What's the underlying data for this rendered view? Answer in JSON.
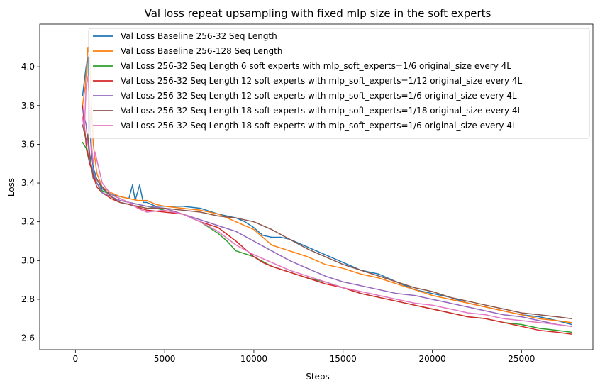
{
  "chart_data": {
    "type": "line",
    "title": "Val loss repeat upsampling with fixed mlp size in the soft experts",
    "xlabel": "Steps",
    "ylabel": "Loss",
    "xlim": [
      -2000,
      29000
    ],
    "ylim": [
      2.54,
      4.22
    ],
    "xticks": [
      0,
      5000,
      10000,
      15000,
      20000,
      25000
    ],
    "yticks": [
      2.6,
      2.8,
      3.0,
      3.2,
      3.4,
      3.6,
      3.8,
      4.0
    ],
    "grid": false,
    "legend_position": "top-right",
    "series": [
      {
        "name": "Val Loss Baseline 256-32 Seq Length",
        "color": "#1f77b4",
        "points": [
          [
            400,
            3.85
          ],
          [
            600,
            4.0
          ],
          [
            700,
            4.05
          ],
          [
            800,
            3.7
          ],
          [
            900,
            3.55
          ],
          [
            1000,
            3.48
          ],
          [
            1200,
            3.42
          ],
          [
            1500,
            3.37
          ],
          [
            2000,
            3.34
          ],
          [
            2500,
            3.33
          ],
          [
            3000,
            3.32
          ],
          [
            3200,
            3.39
          ],
          [
            3350,
            3.31
          ],
          [
            3600,
            3.39
          ],
          [
            3800,
            3.3
          ],
          [
            4000,
            3.3
          ],
          [
            4500,
            3.28
          ],
          [
            5000,
            3.28
          ],
          [
            6000,
            3.28
          ],
          [
            7000,
            3.27
          ],
          [
            8000,
            3.24
          ],
          [
            9000,
            3.22
          ],
          [
            9500,
            3.2
          ],
          [
            10000,
            3.17
          ],
          [
            10500,
            3.13
          ],
          [
            11000,
            3.12
          ],
          [
            11500,
            3.12
          ],
          [
            12000,
            3.11
          ],
          [
            12500,
            3.09
          ],
          [
            13000,
            3.07
          ],
          [
            13500,
            3.05
          ],
          [
            14000,
            3.03
          ],
          [
            14500,
            3.01
          ],
          [
            15000,
            2.99
          ],
          [
            15500,
            2.97
          ],
          [
            16000,
            2.95
          ],
          [
            17000,
            2.93
          ],
          [
            18000,
            2.89
          ],
          [
            19000,
            2.85
          ],
          [
            20000,
            2.83
          ],
          [
            21000,
            2.81
          ],
          [
            22000,
            2.78
          ],
          [
            23000,
            2.76
          ],
          [
            24000,
            2.74
          ],
          [
            25000,
            2.72
          ],
          [
            26000,
            2.71
          ],
          [
            27000,
            2.69
          ],
          [
            27800,
            2.67
          ]
        ]
      },
      {
        "name": "Val Loss Baseline 256-128 Seq Length",
        "color": "#ff7f0e",
        "points": [
          [
            400,
            3.8
          ],
          [
            550,
            3.9
          ],
          [
            700,
            4.1
          ],
          [
            800,
            4.05
          ],
          [
            900,
            3.8
          ],
          [
            1000,
            3.6
          ],
          [
            1200,
            3.45
          ],
          [
            1500,
            3.38
          ],
          [
            2000,
            3.35
          ],
          [
            2500,
            3.33
          ],
          [
            3000,
            3.32
          ],
          [
            3500,
            3.31
          ],
          [
            4000,
            3.31
          ],
          [
            4500,
            3.29
          ],
          [
            5000,
            3.28
          ],
          [
            6000,
            3.27
          ],
          [
            7000,
            3.26
          ],
          [
            8000,
            3.24
          ],
          [
            9000,
            3.2
          ],
          [
            10000,
            3.16
          ],
          [
            10500,
            3.12
          ],
          [
            11000,
            3.08
          ],
          [
            12000,
            3.05
          ],
          [
            13000,
            3.02
          ],
          [
            14000,
            2.98
          ],
          [
            15000,
            2.96
          ],
          [
            16000,
            2.93
          ],
          [
            17000,
            2.91
          ],
          [
            18000,
            2.88
          ],
          [
            19000,
            2.85
          ],
          [
            20000,
            2.82
          ],
          [
            21000,
            2.8
          ],
          [
            22000,
            2.78
          ],
          [
            23000,
            2.76
          ],
          [
            24000,
            2.74
          ],
          [
            25000,
            2.72
          ],
          [
            26000,
            2.7
          ],
          [
            27000,
            2.69
          ],
          [
            27800,
            2.68
          ]
        ]
      },
      {
        "name": "Val Loss 256-32 Seq Length 6 soft experts with mlp_soft_experts=1/6 original_size every 4L",
        "color": "#2ca02c",
        "points": [
          [
            400,
            3.61
          ],
          [
            600,
            3.58
          ],
          [
            800,
            3.5
          ],
          [
            1000,
            3.45
          ],
          [
            1200,
            3.4
          ],
          [
            1500,
            3.36
          ],
          [
            2000,
            3.34
          ],
          [
            2500,
            3.32
          ],
          [
            3000,
            3.3
          ],
          [
            4000,
            3.28
          ],
          [
            5000,
            3.26
          ],
          [
            6000,
            3.24
          ],
          [
            7000,
            3.2
          ],
          [
            8000,
            3.14
          ],
          [
            8500,
            3.1
          ],
          [
            9000,
            3.05
          ],
          [
            10000,
            3.02
          ],
          [
            11000,
            2.97
          ],
          [
            12000,
            2.94
          ],
          [
            13000,
            2.91
          ],
          [
            14000,
            2.89
          ],
          [
            15000,
            2.86
          ],
          [
            16000,
            2.83
          ],
          [
            17000,
            2.81
          ],
          [
            18000,
            2.79
          ],
          [
            19000,
            2.77
          ],
          [
            20000,
            2.75
          ],
          [
            21000,
            2.73
          ],
          [
            22000,
            2.71
          ],
          [
            23000,
            2.7
          ],
          [
            24000,
            2.68
          ],
          [
            25000,
            2.67
          ],
          [
            26000,
            2.65
          ],
          [
            27000,
            2.64
          ],
          [
            27800,
            2.63
          ]
        ]
      },
      {
        "name": "Val Loss 256-32 Seq Length 12 soft experts with mlp_soft_experts=1/12 original_size every 4L",
        "color": "#d62728",
        "points": [
          [
            400,
            3.8
          ],
          [
            600,
            3.6
          ],
          [
            800,
            3.5
          ],
          [
            1000,
            3.44
          ],
          [
            1200,
            3.38
          ],
          [
            1500,
            3.35
          ],
          [
            2000,
            3.32
          ],
          [
            2500,
            3.3
          ],
          [
            3000,
            3.29
          ],
          [
            4000,
            3.26
          ],
          [
            5000,
            3.25
          ],
          [
            6000,
            3.24
          ],
          [
            7000,
            3.2
          ],
          [
            8000,
            3.17
          ],
          [
            9000,
            3.1
          ],
          [
            9500,
            3.06
          ],
          [
            10000,
            3.02
          ],
          [
            10500,
            2.99
          ],
          [
            11000,
            2.97
          ],
          [
            12000,
            2.94
          ],
          [
            13000,
            2.91
          ],
          [
            14000,
            2.88
          ],
          [
            15000,
            2.86
          ],
          [
            16000,
            2.83
          ],
          [
            17000,
            2.81
          ],
          [
            18000,
            2.79
          ],
          [
            19000,
            2.77
          ],
          [
            20000,
            2.75
          ],
          [
            21000,
            2.73
          ],
          [
            22000,
            2.71
          ],
          [
            23000,
            2.7
          ],
          [
            24000,
            2.68
          ],
          [
            25000,
            2.66
          ],
          [
            26000,
            2.64
          ],
          [
            27000,
            2.63
          ],
          [
            27800,
            2.62
          ]
        ]
      },
      {
        "name": "Val Loss 256-32 Seq Length 12 soft experts with mlp_soft_experts=1/6 original_size every 4L",
        "color": "#9467bd",
        "points": [
          [
            400,
            3.78
          ],
          [
            600,
            3.7
          ],
          [
            800,
            3.52
          ],
          [
            1000,
            3.46
          ],
          [
            1200,
            3.4
          ],
          [
            1500,
            3.35
          ],
          [
            2000,
            3.33
          ],
          [
            2500,
            3.31
          ],
          [
            3000,
            3.3
          ],
          [
            4000,
            3.28
          ],
          [
            5000,
            3.27
          ],
          [
            6000,
            3.24
          ],
          [
            7000,
            3.21
          ],
          [
            8000,
            3.18
          ],
          [
            9000,
            3.15
          ],
          [
            10000,
            3.1
          ],
          [
            11000,
            3.05
          ],
          [
            12000,
            3.0
          ],
          [
            13000,
            2.96
          ],
          [
            14000,
            2.92
          ],
          [
            15000,
            2.89
          ],
          [
            16000,
            2.87
          ],
          [
            17000,
            2.85
          ],
          [
            18000,
            2.83
          ],
          [
            19000,
            2.82
          ],
          [
            20000,
            2.8
          ],
          [
            21000,
            2.78
          ],
          [
            22000,
            2.76
          ],
          [
            23000,
            2.74
          ],
          [
            24000,
            2.72
          ],
          [
            25000,
            2.71
          ],
          [
            26000,
            2.69
          ],
          [
            27000,
            2.67
          ],
          [
            27800,
            2.66
          ]
        ]
      },
      {
        "name": "Val Loss 256-32 Seq Length 18 soft experts with mlp_soft_experts=1/18 original_size every 4L",
        "color": "#8c564b",
        "points": [
          [
            400,
            3.7
          ],
          [
            600,
            3.62
          ],
          [
            700,
            3.65
          ],
          [
            800,
            3.55
          ],
          [
            1000,
            3.42
          ],
          [
            1200,
            3.42
          ],
          [
            1500,
            3.38
          ],
          [
            2000,
            3.33
          ],
          [
            2500,
            3.3
          ],
          [
            3000,
            3.29
          ],
          [
            4000,
            3.27
          ],
          [
            5000,
            3.27
          ],
          [
            6000,
            3.26
          ],
          [
            7000,
            3.25
          ],
          [
            8000,
            3.23
          ],
          [
            9000,
            3.22
          ],
          [
            10000,
            3.2
          ],
          [
            11000,
            3.16
          ],
          [
            12000,
            3.11
          ],
          [
            13000,
            3.06
          ],
          [
            14000,
            3.02
          ],
          [
            15000,
            2.98
          ],
          [
            16000,
            2.95
          ],
          [
            17000,
            2.92
          ],
          [
            18000,
            2.89
          ],
          [
            19000,
            2.86
          ],
          [
            20000,
            2.84
          ],
          [
            21000,
            2.81
          ],
          [
            22000,
            2.79
          ],
          [
            23000,
            2.77
          ],
          [
            24000,
            2.75
          ],
          [
            25000,
            2.73
          ],
          [
            26000,
            2.72
          ],
          [
            27000,
            2.71
          ],
          [
            27800,
            2.7
          ]
        ]
      },
      {
        "name": "Val Loss 256-32 Seq Length 18 soft experts with mlp_soft_experts=1/6 original_size every 4L",
        "color": "#e377c2",
        "points": [
          [
            400,
            3.74
          ],
          [
            500,
            3.67
          ],
          [
            600,
            3.9
          ],
          [
            700,
            3.95
          ],
          [
            800,
            3.8
          ],
          [
            900,
            3.6
          ],
          [
            1000,
            3.5
          ],
          [
            1100,
            3.56
          ],
          [
            1200,
            3.52
          ],
          [
            1500,
            3.4
          ],
          [
            2000,
            3.34
          ],
          [
            2500,
            3.32
          ],
          [
            3000,
            3.3
          ],
          [
            3500,
            3.27
          ],
          [
            4000,
            3.25
          ],
          [
            5000,
            3.26
          ],
          [
            6000,
            3.24
          ],
          [
            7000,
            3.2
          ],
          [
            8000,
            3.15
          ],
          [
            9000,
            3.08
          ],
          [
            10000,
            3.03
          ],
          [
            11000,
            2.99
          ],
          [
            12000,
            2.95
          ],
          [
            13000,
            2.92
          ],
          [
            14000,
            2.89
          ],
          [
            15000,
            2.86
          ],
          [
            16000,
            2.84
          ],
          [
            17000,
            2.82
          ],
          [
            18000,
            2.8
          ],
          [
            19000,
            2.78
          ],
          [
            20000,
            2.77
          ],
          [
            21000,
            2.75
          ],
          [
            22000,
            2.73
          ],
          [
            23000,
            2.72
          ],
          [
            24000,
            2.7
          ],
          [
            25000,
            2.69
          ],
          [
            26000,
            2.68
          ],
          [
            27000,
            2.67
          ],
          [
            27800,
            2.66
          ]
        ]
      }
    ]
  }
}
